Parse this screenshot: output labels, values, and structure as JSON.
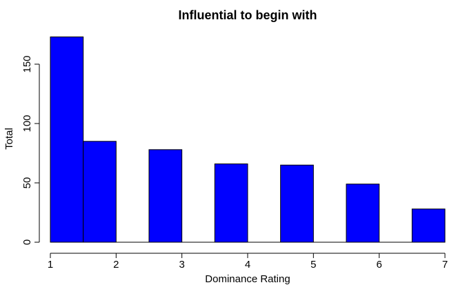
{
  "chart_data": {
    "type": "bar",
    "title": "Influential to begin with",
    "xlabel": "Dominance Rating",
    "ylabel": "Total",
    "bins": [
      {
        "start": 1.0,
        "end": 1.5,
        "value": 173
      },
      {
        "start": 1.5,
        "end": 2.0,
        "value": 85
      },
      {
        "start": 2.0,
        "end": 2.5,
        "value": 0
      },
      {
        "start": 2.5,
        "end": 3.0,
        "value": 78
      },
      {
        "start": 3.0,
        "end": 3.5,
        "value": 0
      },
      {
        "start": 3.5,
        "end": 4.0,
        "value": 66
      },
      {
        "start": 4.0,
        "end": 4.5,
        "value": 0
      },
      {
        "start": 4.5,
        "end": 5.0,
        "value": 65
      },
      {
        "start": 5.0,
        "end": 5.5,
        "value": 0
      },
      {
        "start": 5.5,
        "end": 6.0,
        "value": 49
      },
      {
        "start": 6.0,
        "end": 6.5,
        "value": 0
      },
      {
        "start": 6.5,
        "end": 7.0,
        "value": 28
      }
    ],
    "xlim": [
      1,
      7
    ],
    "ylim": [
      0,
      175
    ],
    "xticks": [
      "1",
      "2",
      "3",
      "4",
      "5",
      "6",
      "7"
    ],
    "yticks": [
      "0",
      "50",
      "100",
      "150"
    ],
    "bar_color": "#0000FF",
    "grid": false,
    "legend": "none"
  }
}
